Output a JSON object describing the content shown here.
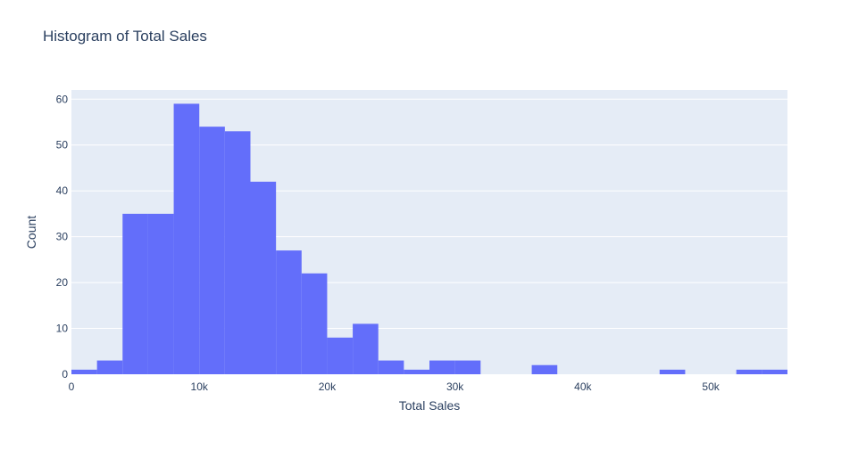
{
  "chart_data": {
    "type": "bar",
    "title": "Histogram of Total Sales",
    "xlabel": "Total Sales",
    "ylabel": "Count",
    "bin_edges": [
      0,
      2000,
      4000,
      6000,
      8000,
      10000,
      12000,
      14000,
      16000,
      18000,
      20000,
      22000,
      24000,
      26000,
      28000,
      30000,
      32000,
      34000,
      36000,
      38000,
      40000,
      42000,
      44000,
      46000,
      48000,
      50000,
      52000,
      54000,
      56000
    ],
    "values": [
      1,
      3,
      35,
      35,
      59,
      54,
      53,
      42,
      27,
      22,
      8,
      11,
      3,
      1,
      3,
      3,
      0,
      0,
      2,
      0,
      0,
      0,
      0,
      1,
      0,
      0,
      1,
      1
    ],
    "xlim": [
      0,
      56000
    ],
    "ylim": [
      0,
      62
    ],
    "x_ticks": [
      {
        "value": 0,
        "label": "0"
      },
      {
        "value": 10000,
        "label": "10k"
      },
      {
        "value": 20000,
        "label": "20k"
      },
      {
        "value": 30000,
        "label": "30k"
      },
      {
        "value": 40000,
        "label": "40k"
      },
      {
        "value": 50000,
        "label": "50k"
      }
    ],
    "y_ticks": [
      {
        "value": 0,
        "label": "0"
      },
      {
        "value": 10,
        "label": "10"
      },
      {
        "value": 20,
        "label": "20"
      },
      {
        "value": 30,
        "label": "30"
      },
      {
        "value": 40,
        "label": "40"
      },
      {
        "value": 50,
        "label": "50"
      },
      {
        "value": 60,
        "label": "60"
      }
    ],
    "grid": true,
    "legend": "none",
    "colors": {
      "bar": "#636efa",
      "plot_bg": "#e5ecf6",
      "grid": "#ffffff",
      "text": "#2a3f5f",
      "tick_text": "#2a3f5f"
    }
  }
}
